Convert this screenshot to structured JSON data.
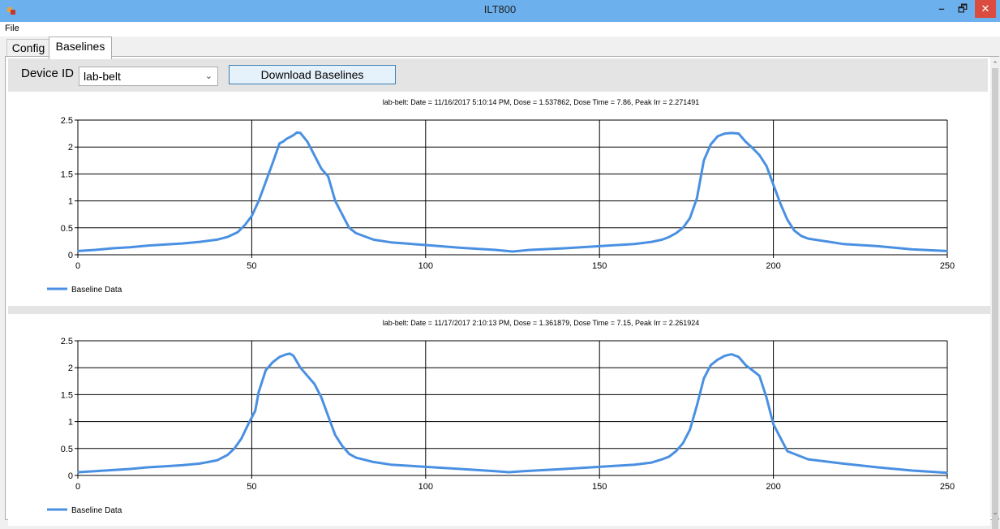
{
  "window": {
    "title": "ILT800",
    "minimize_glyph": "–",
    "maximize_glyph": "🗗",
    "close_glyph": "✕"
  },
  "menu": {
    "file": "File"
  },
  "tabs": [
    {
      "label": "Config"
    },
    {
      "label": "Baselines"
    }
  ],
  "toolbar": {
    "device_id_label": "Device ID",
    "device_id_value": "lab-belt",
    "download_button": "Download Baselines"
  },
  "scrollbar": {
    "up_glyph": "⌃",
    "down_glyph": "⌄"
  },
  "colors": {
    "series": "#4a90e2",
    "titlebar": "#6cb1ee",
    "close": "#d94c3f"
  },
  "chart_data": [
    {
      "type": "line",
      "title": "lab-belt: Date = 11/16/2017 5:10:14 PM, Dose = 1.537862, Dose Time = 7.86, Peak Irr = 2.271491",
      "xlim": [
        0,
        250
      ],
      "ylim": [
        0,
        2.5
      ],
      "xticks": [
        "0",
        "50",
        "100",
        "150",
        "200",
        "250"
      ],
      "yticks": [
        "0",
        "0.5",
        "1",
        "1.5",
        "2",
        "2.5"
      ],
      "grid": true,
      "legend": "bottom-left",
      "series": [
        {
          "name": "Baseline Data",
          "x": [
            0,
            5,
            10,
            15,
            20,
            25,
            30,
            35,
            40,
            43,
            46,
            48,
            50,
            52,
            54,
            56,
            58,
            59,
            60,
            62,
            63,
            64,
            66,
            68,
            70,
            72,
            74,
            76,
            78,
            80,
            85,
            90,
            100,
            110,
            120,
            125,
            130,
            140,
            150,
            160,
            165,
            168,
            170,
            172,
            174,
            176,
            178,
            180,
            182,
            184,
            186,
            188,
            190,
            192,
            194,
            196,
            198,
            200,
            202,
            204,
            206,
            208,
            210,
            215,
            220,
            230,
            240,
            250
          ],
          "y": [
            0.07,
            0.09,
            0.12,
            0.14,
            0.17,
            0.19,
            0.21,
            0.24,
            0.28,
            0.33,
            0.42,
            0.55,
            0.72,
            1.0,
            1.35,
            1.7,
            2.07,
            2.1,
            2.15,
            2.22,
            2.27,
            2.26,
            2.1,
            1.85,
            1.6,
            1.45,
            1.0,
            0.75,
            0.5,
            0.4,
            0.28,
            0.23,
            0.18,
            0.13,
            0.09,
            0.06,
            0.09,
            0.12,
            0.16,
            0.2,
            0.24,
            0.28,
            0.33,
            0.4,
            0.5,
            0.68,
            1.05,
            1.75,
            2.05,
            2.2,
            2.25,
            2.26,
            2.25,
            2.1,
            1.98,
            1.85,
            1.65,
            1.3,
            0.95,
            0.65,
            0.45,
            0.35,
            0.3,
            0.25,
            0.2,
            0.16,
            0.1,
            0.07
          ]
        }
      ]
    },
    {
      "type": "line",
      "title": "lab-belt: Date = 11/17/2017 2:10:13 PM, Dose = 1.361879, Dose Time = 7.15, Peak Irr = 2.261924",
      "xlim": [
        0,
        250
      ],
      "ylim": [
        0,
        2.5
      ],
      "xticks": [
        "0",
        "50",
        "100",
        "150",
        "200",
        "250"
      ],
      "yticks": [
        "0",
        "0.5",
        "1",
        "1.5",
        "2",
        "2.5"
      ],
      "grid": true,
      "legend": "bottom-left",
      "series": [
        {
          "name": "Baseline Data",
          "x": [
            0,
            5,
            10,
            15,
            20,
            25,
            30,
            35,
            40,
            43,
            45,
            47,
            49,
            51,
            52,
            54,
            56,
            58,
            60,
            61,
            62,
            64,
            66,
            68,
            70,
            72,
            74,
            76,
            78,
            80,
            85,
            90,
            100,
            110,
            120,
            124,
            128,
            140,
            150,
            160,
            165,
            168,
            170,
            172,
            174,
            176,
            178,
            180,
            182,
            184,
            186,
            188,
            190,
            192,
            194,
            196,
            198,
            200,
            204,
            210,
            220,
            230,
            240,
            250
          ],
          "y": [
            0.06,
            0.08,
            0.1,
            0.12,
            0.15,
            0.17,
            0.19,
            0.22,
            0.28,
            0.38,
            0.5,
            0.68,
            0.95,
            1.2,
            1.55,
            1.95,
            2.1,
            2.2,
            2.25,
            2.26,
            2.22,
            2.0,
            1.85,
            1.7,
            1.45,
            1.1,
            0.75,
            0.55,
            0.4,
            0.33,
            0.25,
            0.2,
            0.16,
            0.12,
            0.08,
            0.06,
            0.08,
            0.12,
            0.16,
            0.2,
            0.24,
            0.3,
            0.35,
            0.45,
            0.6,
            0.85,
            1.3,
            1.8,
            2.05,
            2.15,
            2.22,
            2.25,
            2.2,
            2.05,
            1.95,
            1.85,
            1.45,
            0.95,
            0.45,
            0.3,
            0.22,
            0.15,
            0.09,
            0.05
          ]
        }
      ]
    }
  ]
}
